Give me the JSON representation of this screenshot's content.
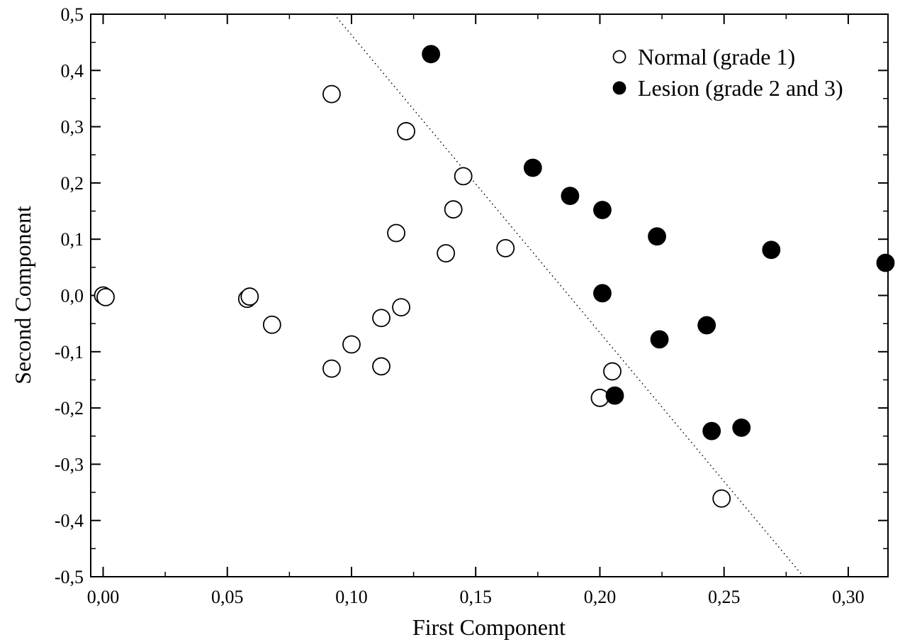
{
  "chart_data": {
    "type": "scatter",
    "title": "",
    "xlabel": "First Component",
    "ylabel": "Second Component",
    "xlim": [
      -0.005,
      0.316
    ],
    "ylim": [
      -0.5,
      0.5
    ],
    "x_ticks": [
      "0,00",
      "0,05",
      "0,10",
      "0,15",
      "0,20",
      "0,25",
      "0,30"
    ],
    "x_tick_values": [
      0.0,
      0.05,
      0.1,
      0.15,
      0.2,
      0.25,
      0.3
    ],
    "y_ticks": [
      "0,5",
      "0,4",
      "0,3",
      "0,2",
      "0,1",
      "0,0",
      "-0,1",
      "-0,2",
      "-0,3",
      "-0,4",
      "-0,5"
    ],
    "y_tick_values": [
      0.5,
      0.4,
      0.3,
      0.2,
      0.1,
      0.0,
      -0.1,
      -0.2,
      -0.3,
      -0.4,
      -0.5
    ],
    "legend_position": "top-right",
    "grid": false,
    "series": [
      {
        "name": "Normal (grade 1)",
        "marker": "open-circle",
        "color": "#000000",
        "points": [
          [
            0.0,
            0.0
          ],
          [
            0.001,
            -0.003
          ],
          [
            0.058,
            -0.006
          ],
          [
            0.059,
            -0.002
          ],
          [
            0.068,
            -0.052
          ],
          [
            0.092,
            -0.13
          ],
          [
            0.1,
            -0.087
          ],
          [
            0.112,
            -0.126
          ],
          [
            0.112,
            -0.04
          ],
          [
            0.12,
            -0.021
          ],
          [
            0.092,
            0.358
          ],
          [
            0.122,
            0.292
          ],
          [
            0.145,
            0.212
          ],
          [
            0.141,
            0.153
          ],
          [
            0.118,
            0.111
          ],
          [
            0.138,
            0.075
          ],
          [
            0.162,
            0.084
          ],
          [
            0.205,
            -0.135
          ],
          [
            0.2,
            -0.182
          ],
          [
            0.249,
            -0.361
          ]
        ]
      },
      {
        "name": "Lesion (grade 2 and 3)",
        "marker": "filled-circle",
        "color": "#000000",
        "points": [
          [
            0.132,
            0.429
          ],
          [
            0.173,
            0.227
          ],
          [
            0.188,
            0.177
          ],
          [
            0.201,
            0.152
          ],
          [
            0.223,
            0.105
          ],
          [
            0.269,
            0.081
          ],
          [
            0.315,
            0.058
          ],
          [
            0.201,
            0.004
          ],
          [
            0.243,
            -0.053
          ],
          [
            0.224,
            -0.078
          ],
          [
            0.206,
            -0.178
          ],
          [
            0.245,
            -0.241
          ],
          [
            0.257,
            -0.235
          ]
        ]
      }
    ],
    "decision_line": {
      "style": "dotted",
      "points": [
        [
          0.093,
          0.5
        ],
        [
          0.282,
          -0.5
        ]
      ]
    }
  }
}
